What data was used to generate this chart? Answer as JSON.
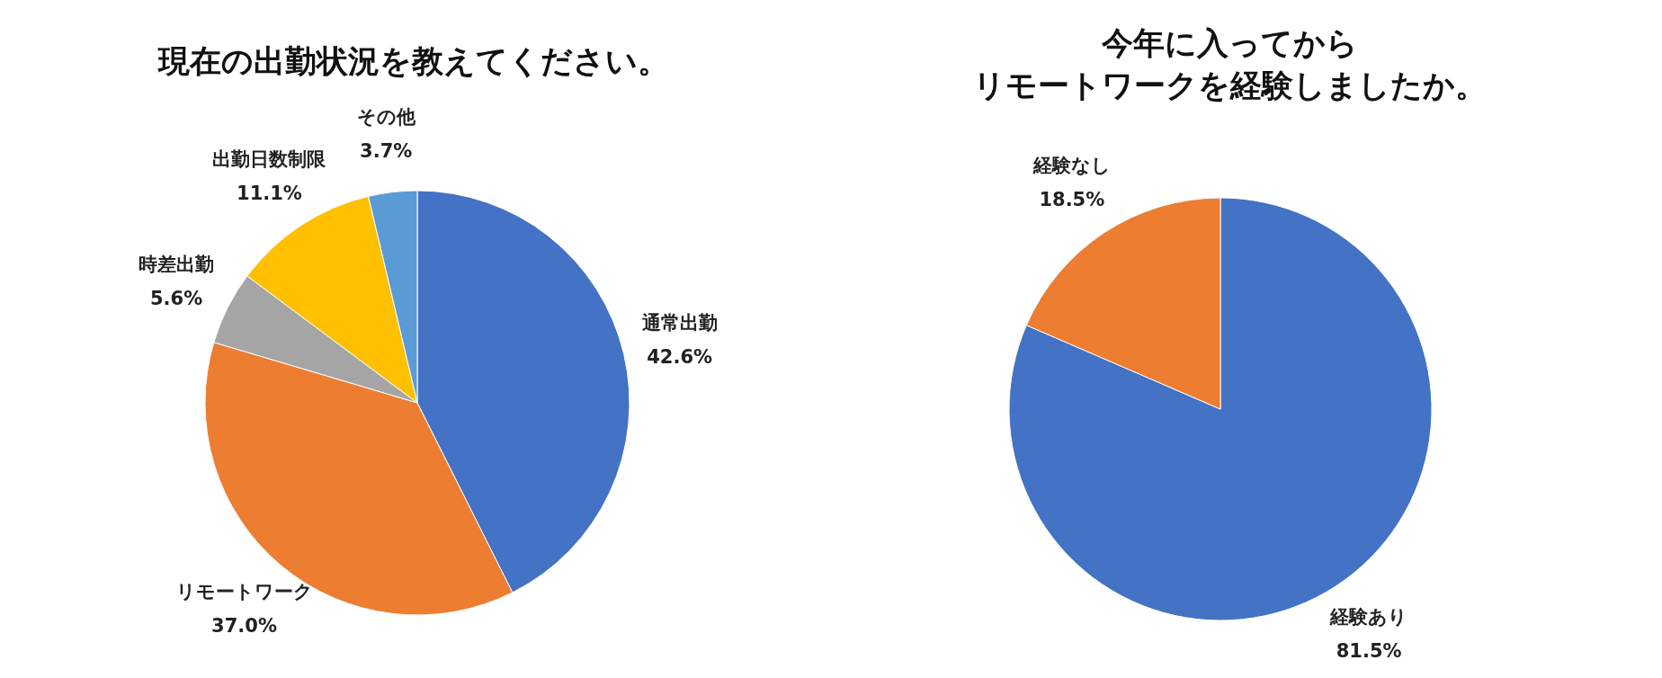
{
  "chart_data": [
    {
      "type": "pie",
      "title": "現在の出勤状況を教えてください。",
      "categories": [
        "通常出勤",
        "リモートワーク",
        "時差出勤",
        "出勤日数制限",
        "その他"
      ],
      "values": [
        42.6,
        37.0,
        5.6,
        11.1,
        3.7
      ],
      "colors": [
        "#4472c4",
        "#ed7d31",
        "#a5a5a5",
        "#ffc000",
        "#5b9bd5"
      ],
      "value_labels": [
        "42.6%",
        "37.0%",
        "5.6%",
        "11.1%",
        "3.7%"
      ]
    },
    {
      "type": "pie",
      "title": "今年に入ってから",
      "subtitle": "リモートワークを経験しましたか。",
      "categories": [
        "経験あり",
        "経験なし"
      ],
      "values": [
        81.5,
        18.5
      ],
      "colors": [
        "#4472c4",
        "#ed7d31"
      ],
      "value_labels": [
        "81.5%",
        "18.5%"
      ]
    }
  ]
}
